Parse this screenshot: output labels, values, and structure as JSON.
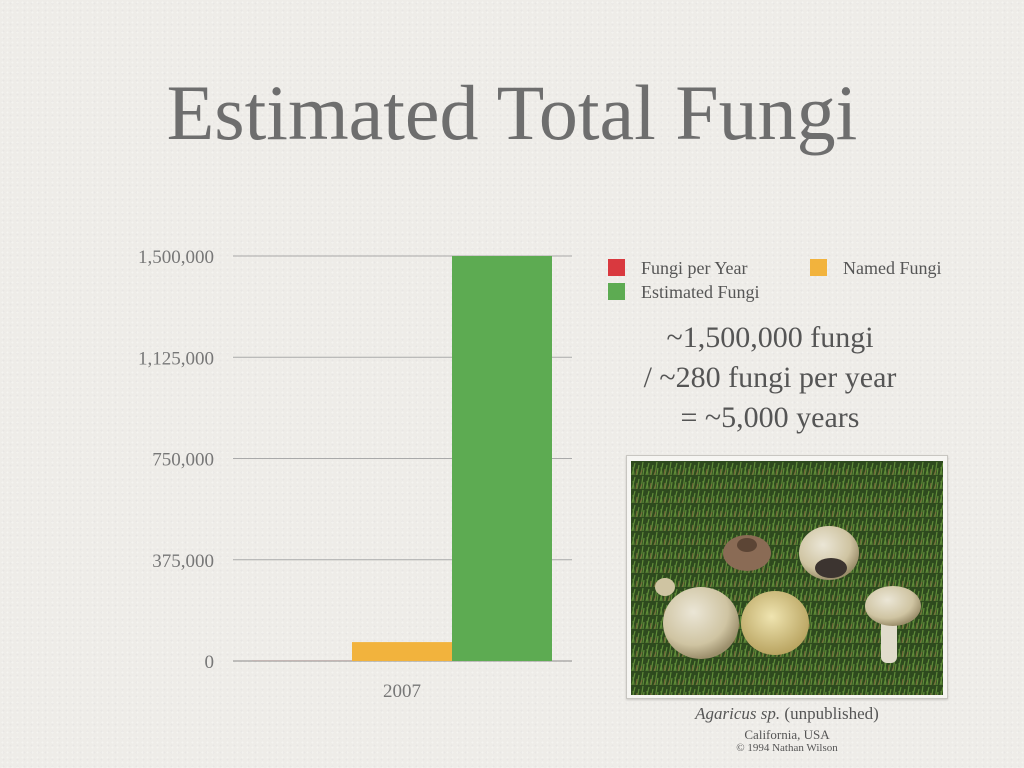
{
  "slide": {
    "title": "Estimated Total Fungi",
    "calc_lines": [
      "~1,500,000 fungi",
      "/ ~280 fungi per year",
      "= ~5,000 years"
    ],
    "photo": {
      "caption_italic": "Agaricus sp.",
      "caption_rest": " (unpublished)",
      "location": "California, USA",
      "credit": "© 1994 Nathan Wilson"
    }
  },
  "chart_data": {
    "type": "bar",
    "categories": [
      "2007"
    ],
    "series": [
      {
        "name": "Fungi per Year",
        "color": "#d9393f",
        "values": [
          280
        ]
      },
      {
        "name": "Named Fungi",
        "color": "#f2b33d",
        "values": [
          70000
        ]
      },
      {
        "name": "Estimated Fungi",
        "color": "#5dab52",
        "values": [
          1500000
        ]
      }
    ],
    "y_ticks": [
      "0",
      "375,000",
      "750,000",
      "1,125,000",
      "1,500,000"
    ],
    "ylim": [
      0,
      1500000
    ],
    "grid": true,
    "legend_position": "top-right",
    "xlabel": "",
    "ylabel": ""
  }
}
